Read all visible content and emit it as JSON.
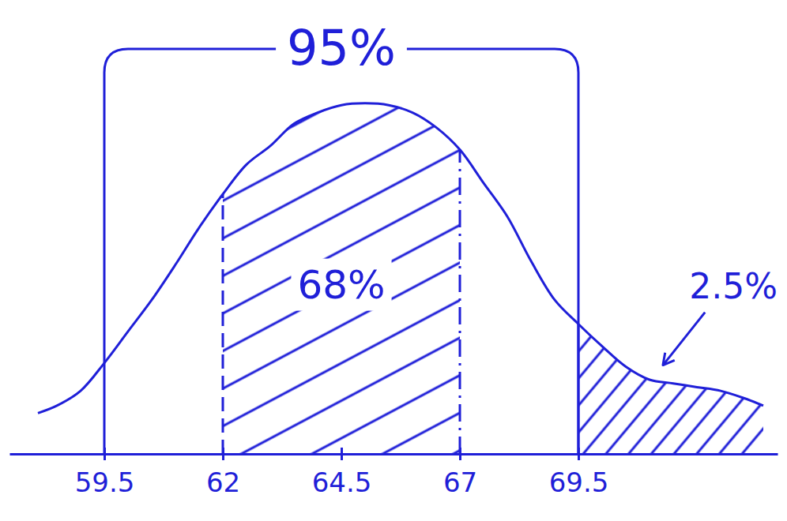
{
  "chart_data": {
    "type": "area",
    "color": "#1f1fd8",
    "x": [
      58.1,
      58.5,
      59,
      59.5,
      60,
      60.5,
      61,
      61.5,
      62,
      62.5,
      63,
      63.5,
      64,
      64.5,
      65,
      65.5,
      66,
      66.5,
      67,
      67.5,
      68,
      68.5,
      69,
      69.5,
      70,
      70.5,
      71,
      71.5,
      72,
      72.5,
      73,
      73.4
    ],
    "values": [
      0.11,
      0.13,
      0.17,
      0.245,
      0.33,
      0.415,
      0.51,
      0.61,
      0.7,
      0.78,
      0.83,
      0.89,
      0.92,
      0.94,
      0.945,
      0.94,
      0.92,
      0.88,
      0.82,
      0.73,
      0.64,
      0.52,
      0.415,
      0.35,
      0.29,
      0.235,
      0.2,
      0.19,
      0.18,
      0.17,
      0.15,
      0.13
    ],
    "xlim": [
      57.5,
      73.7
    ],
    "xticks": [
      59.5,
      62,
      64.5,
      67,
      69.5
    ],
    "ylim": [
      0,
      1
    ],
    "tick_labels": "x",
    "grid": false,
    "brackets": [
      {
        "text": "95%",
        "from": 59.5,
        "to": 69.5
      }
    ],
    "regions": [
      {
        "text": "68%",
        "from": 62,
        "to": 67
      },
      {
        "text": "2.5%",
        "from": 69.5,
        "to": 73.4
      }
    ]
  }
}
